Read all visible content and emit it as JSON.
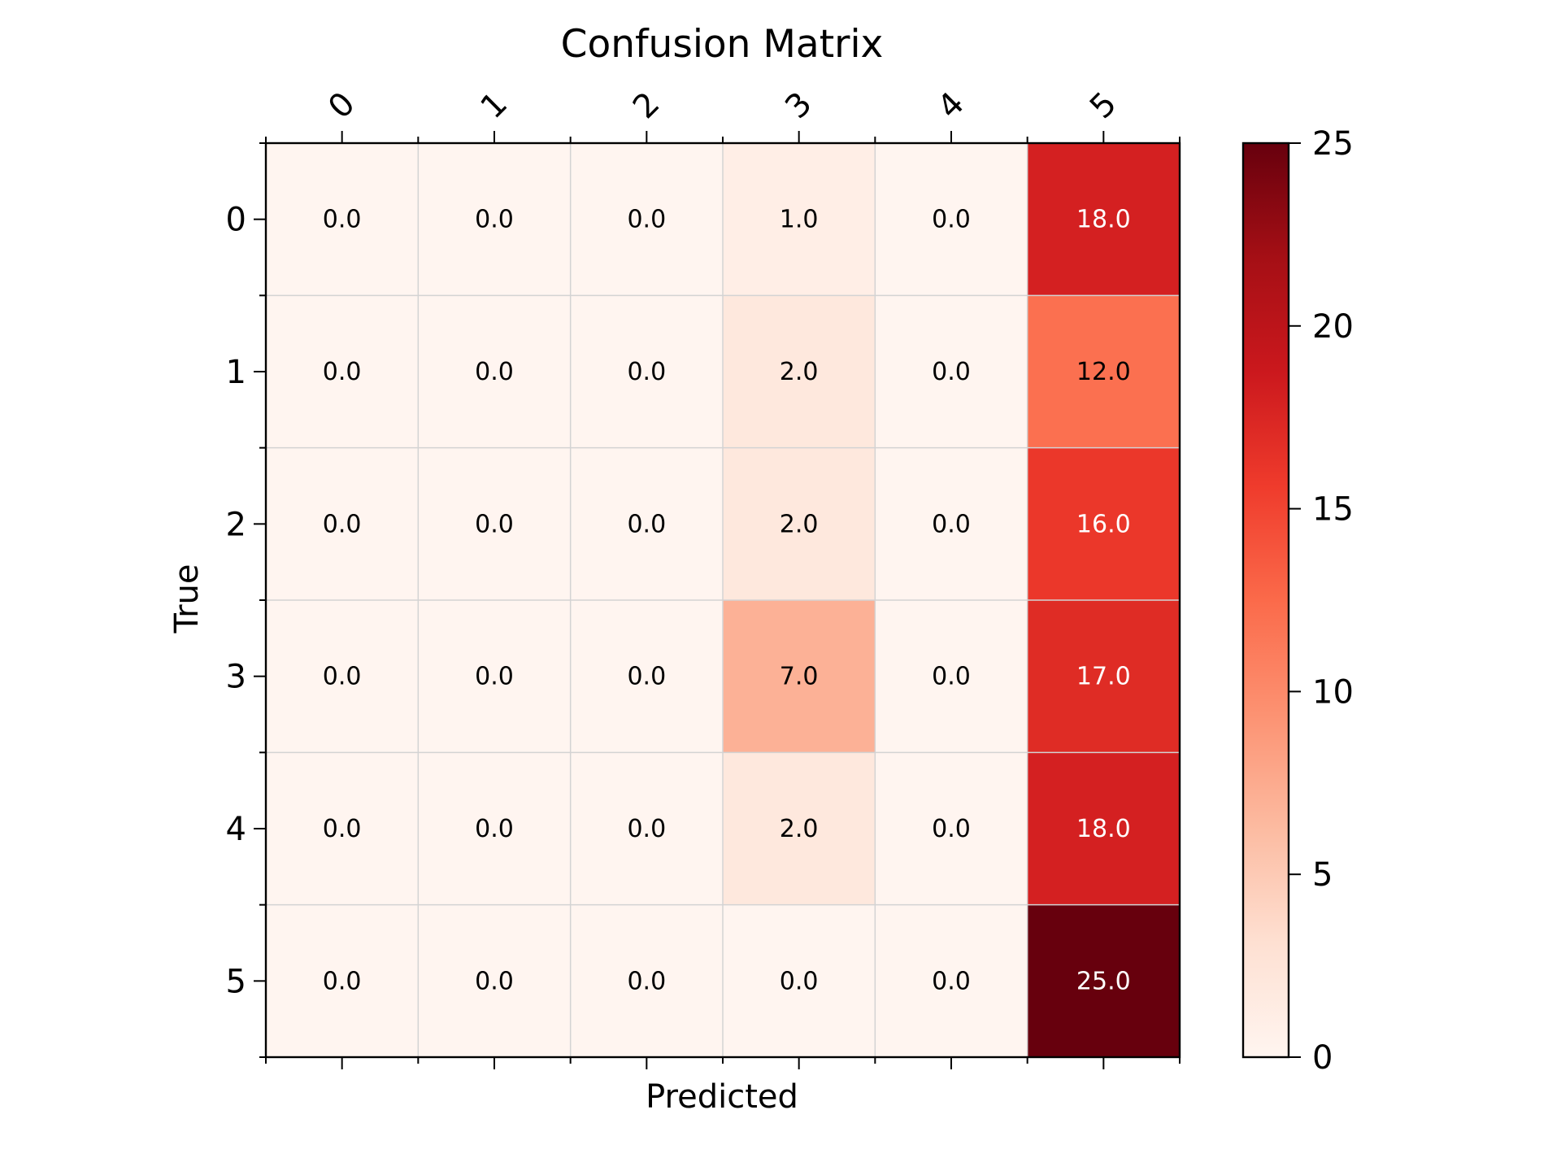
{
  "chart_data": {
    "type": "heatmap",
    "title": "Confusion Matrix",
    "xlabel": "Predicted",
    "ylabel": "True",
    "x_categories": [
      "0",
      "1",
      "2",
      "3",
      "4",
      "5"
    ],
    "y_categories": [
      "0",
      "1",
      "2",
      "3",
      "4",
      "5"
    ],
    "values": [
      [
        0.0,
        0.0,
        0.0,
        1.0,
        0.0,
        18.0
      ],
      [
        0.0,
        0.0,
        0.0,
        2.0,
        0.0,
        12.0
      ],
      [
        0.0,
        0.0,
        0.0,
        2.0,
        0.0,
        16.0
      ],
      [
        0.0,
        0.0,
        0.0,
        7.0,
        0.0,
        17.0
      ],
      [
        0.0,
        0.0,
        0.0,
        2.0,
        0.0,
        18.0
      ],
      [
        0.0,
        0.0,
        0.0,
        0.0,
        0.0,
        25.0
      ]
    ],
    "value_labels": [
      [
        "0.0",
        "0.0",
        "0.0",
        "1.0",
        "0.0",
        "18.0"
      ],
      [
        "0.0",
        "0.0",
        "0.0",
        "2.0",
        "0.0",
        "12.0"
      ],
      [
        "0.0",
        "0.0",
        "0.0",
        "2.0",
        "0.0",
        "16.0"
      ],
      [
        "0.0",
        "0.0",
        "0.0",
        "7.0",
        "0.0",
        "17.0"
      ],
      [
        "0.0",
        "0.0",
        "0.0",
        "2.0",
        "0.0",
        "18.0"
      ],
      [
        "0.0",
        "0.0",
        "0.0",
        "0.0",
        "0.0",
        "25.0"
      ]
    ],
    "colormap": "Reds",
    "color_range": [
      0,
      25
    ],
    "colorbar_ticks": [
      "0",
      "5",
      "10",
      "15",
      "20",
      "25"
    ],
    "grid": true,
    "x_tick_position": "top"
  }
}
